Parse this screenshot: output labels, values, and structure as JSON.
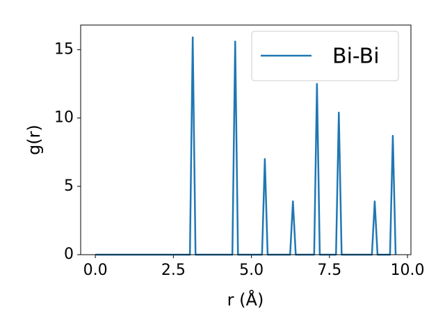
{
  "chart_data": {
    "type": "line",
    "xlabel": "r (Å)",
    "ylabel": "g(r)",
    "x": [
      0,
      3.03,
      3.12,
      3.21,
      4.39,
      4.48,
      4.57,
      5.34,
      5.43,
      5.52,
      6.24,
      6.33,
      6.42,
      7.01,
      7.1,
      7.19,
      7.71,
      7.8,
      7.89,
      8.86,
      8.95,
      9.04,
      9.44,
      9.53,
      9.62
    ],
    "series": [
      {
        "name": "Bi-Bi",
        "color": "#1f77b4",
        "values": [
          0,
          0,
          15.9,
          0,
          0,
          15.6,
          0,
          0,
          7.0,
          0,
          0,
          3.9,
          0,
          0,
          12.5,
          0,
          0,
          10.4,
          0,
          0,
          3.9,
          0,
          0,
          8.7,
          0
        ]
      }
    ],
    "xlim": [
      -0.47,
      10.11
    ],
    "ylim": [
      0,
      16.8
    ],
    "xticks": [
      {
        "value": 0,
        "label": "0.0"
      },
      {
        "value": 2.5,
        "label": "2.5"
      },
      {
        "value": 5,
        "label": "5.0"
      },
      {
        "value": 7.5,
        "label": "7.5"
      },
      {
        "value": 10,
        "label": "10.0"
      }
    ],
    "yticks": [
      0,
      5,
      10,
      15
    ],
    "grid": false,
    "legend": "upper right"
  }
}
